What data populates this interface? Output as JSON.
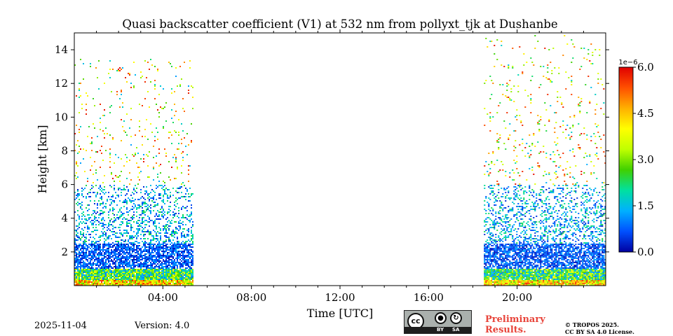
{
  "chart_data": {
    "type": "heatmap",
    "title": "Quasi backscatter coefficient (V1) at 532 nm from pollyxt_tjk at Dushanbe",
    "xlabel": "Time [UTC]",
    "ylabel": "Height [km]",
    "xlim_hours": [
      0,
      24
    ],
    "ylim_km": [
      0,
      15
    ],
    "x_ticks": [
      {
        "value": 4,
        "label": "04:00"
      },
      {
        "value": 8,
        "label": "08:00"
      },
      {
        "value": 12,
        "label": "12:00"
      },
      {
        "value": 16,
        "label": "16:00"
      },
      {
        "value": 20,
        "label": "20:00"
      }
    ],
    "y_ticks": [
      {
        "value": 2,
        "label": "2"
      },
      {
        "value": 4,
        "label": "4"
      },
      {
        "value": 6,
        "label": "6"
      },
      {
        "value": 8,
        "label": "8"
      },
      {
        "value": 10,
        "label": "10"
      },
      {
        "value": 12,
        "label": "12"
      },
      {
        "value": 14,
        "label": "14"
      }
    ],
    "colorbar": {
      "range": [
        0.0,
        6.0
      ],
      "exponent_label": "1e−6",
      "ticks": [
        {
          "value": 0.0,
          "label": "0.0"
        },
        {
          "value": 1.5,
          "label": "1.5"
        },
        {
          "value": 3.0,
          "label": "3.0"
        },
        {
          "value": 4.5,
          "label": "4.5"
        },
        {
          "value": 6.0,
          "label": "6.0"
        }
      ],
      "colormap": [
        "#0000a0",
        "#0050ff",
        "#00b0ff",
        "#00e0a0",
        "#40d000",
        "#c0ff00",
        "#ffff00",
        "#ffb000",
        "#ff5000",
        "#e00000"
      ]
    },
    "data_segments": [
      {
        "start_h": 0.0,
        "end_h": 5.35,
        "signal_top_km": 13.5,
        "note": "morning measurement with aerosol near ground and sparse high signal"
      },
      {
        "start_h": 18.5,
        "end_h": 24.0,
        "signal_top_km": 15.0,
        "note": "evening measurement"
      }
    ],
    "style": {
      "text_color": "#000000",
      "prelim_color": "#e8443a"
    }
  },
  "footer": {
    "date": "2025-11-04",
    "version": "Version: 4.0",
    "preliminary_line1": "Preliminary",
    "preliminary_line2": "Results.",
    "copyright_line1": "© TROPOS 2025.",
    "copyright_line2": "CC BY SA 4.0 License.",
    "cc_badge": {
      "cc": "cc",
      "by": "BY",
      "sa": "SA"
    }
  }
}
